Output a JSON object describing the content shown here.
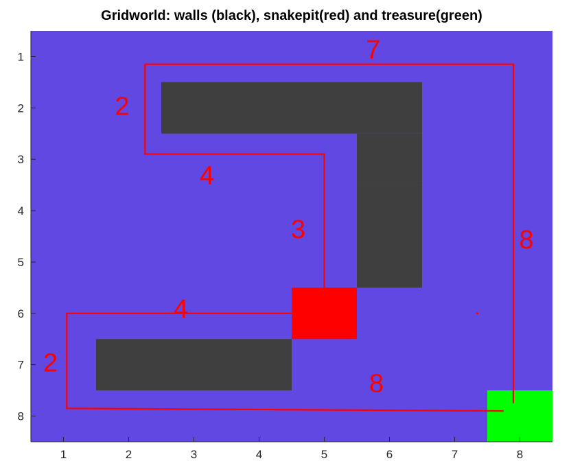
{
  "chart_data": {
    "type": "heatmap",
    "title": "Gridworld: walls (black), snakepit(red) and treasure(green)",
    "xlabel": "",
    "ylabel": "",
    "x_ticks": [
      1,
      2,
      3,
      4,
      5,
      6,
      7,
      8
    ],
    "y_ticks": [
      1,
      2,
      3,
      4,
      5,
      6,
      7,
      8
    ],
    "xlim": [
      0.5,
      8.5
    ],
    "ylim": [
      0.5,
      8.5
    ],
    "y_direction": "reversed",
    "grid": false,
    "colors": {
      "open": "#6248e2",
      "wall": "#3f3f3f",
      "snakepit": "#ff0000",
      "treasure": "#00ff00",
      "path": "#ff0000"
    },
    "cells": {
      "walls": [
        [
          3,
          2
        ],
        [
          4,
          2
        ],
        [
          5,
          2
        ],
        [
          6,
          2
        ],
        [
          6,
          3
        ],
        [
          6,
          4
        ],
        [
          6,
          5
        ],
        [
          2,
          7
        ],
        [
          3,
          7
        ],
        [
          4,
          7
        ]
      ],
      "snakepit": [
        [
          5,
          6
        ]
      ],
      "treasure": [
        [
          8,
          8
        ]
      ]
    },
    "paths": [
      {
        "points": [
          [
            7.9,
            7.75
          ],
          [
            7.9,
            1.15
          ],
          [
            2.25,
            1.15
          ],
          [
            2.25,
            2.9
          ],
          [
            5.0,
            2.9
          ],
          [
            5.0,
            5.5
          ]
        ]
      },
      {
        "points": [
          [
            4.55,
            6.0
          ],
          [
            1.05,
            6.0
          ],
          [
            1.05,
            7.85
          ],
          [
            7.75,
            7.9
          ]
        ]
      }
    ],
    "step_labels": [
      {
        "text": "7",
        "x": 5.75,
        "y": 0.9
      },
      {
        "text": "2",
        "x": 1.9,
        "y": 2.0
      },
      {
        "text": "4",
        "x": 3.2,
        "y": 3.35
      },
      {
        "text": "3",
        "x": 4.6,
        "y": 4.4
      },
      {
        "text": "8",
        "x": 8.1,
        "y": 4.6
      },
      {
        "text": "4",
        "x": 2.8,
        "y": 5.95
      },
      {
        "text": "2",
        "x": 0.8,
        "y": 7.0
      },
      {
        "text": "8",
        "x": 5.8,
        "y": 7.4
      }
    ],
    "markers": [
      {
        "x": 7.35,
        "y": 6.0
      }
    ]
  }
}
